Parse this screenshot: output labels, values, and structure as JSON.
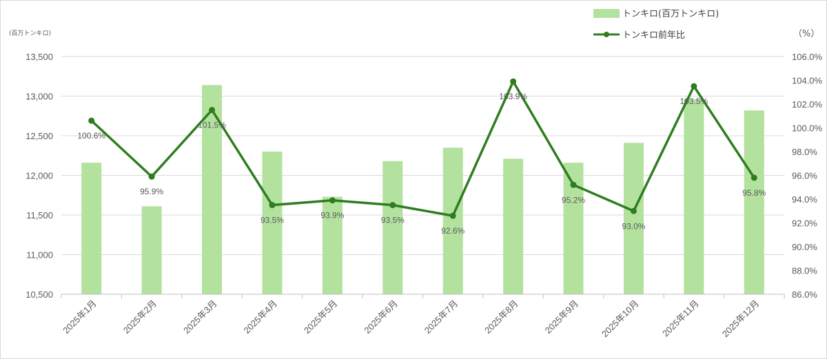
{
  "chart_data": {
    "type": "bar+line",
    "categories": [
      "2025年1月",
      "2025年2月",
      "2025年3月",
      "2025年4月",
      "2025年5月",
      "2025年6月",
      "2025年7月",
      "2025年8月",
      "2025年9月",
      "2025年10月",
      "2025年11月",
      "2025年12月"
    ],
    "series": [
      {
        "name": "トンキロ(百万トンキロ)",
        "type": "bar",
        "axis": "left",
        "color": "#b3e29f",
        "values": [
          12160,
          11610,
          13140,
          12300,
          11730,
          12180,
          12350,
          12210,
          12160,
          12410,
          12960,
          12820
        ]
      },
      {
        "name": "トンキロ前年比",
        "type": "line",
        "axis": "right",
        "color": "#2e7d1f",
        "values": [
          100.6,
          95.9,
          101.5,
          93.5,
          93.9,
          93.5,
          92.6,
          103.9,
          95.2,
          93.0,
          103.5,
          95.8
        ],
        "labels": [
          "100.6%",
          "95.9%",
          "101.5%",
          "93.5%",
          "93.9%",
          "93.5%",
          "92.6%",
          "103.9%",
          "95.2%",
          "93.0%",
          "103.5%",
          "95.8%"
        ]
      }
    ],
    "left_axis": {
      "unit": "(百万トンキロ)",
      "ylim": [
        10500,
        13500
      ],
      "ticks": [
        10500,
        11000,
        11500,
        12000,
        12500,
        13000,
        13500
      ],
      "tick_labels": [
        "10,500",
        "11,000",
        "11,500",
        "12,000",
        "12,500",
        "13,000",
        "13,500"
      ]
    },
    "right_axis": {
      "unit": "（%）",
      "ylim": [
        86,
        106
      ],
      "ticks": [
        86,
        88,
        90,
        92,
        94,
        96,
        98,
        100,
        102,
        104,
        106
      ],
      "tick_labels": [
        "86.0%",
        "88.0%",
        "90.0%",
        "92.0%",
        "94.0%",
        "96.0%",
        "98.0%",
        "100.0%",
        "102.0%",
        "104.0%",
        "106.0%"
      ]
    },
    "grid": true,
    "legend_position": "top-right"
  }
}
